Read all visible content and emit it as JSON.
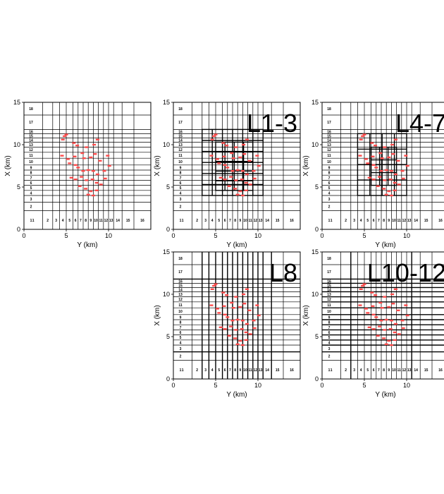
{
  "figure": {
    "x_axis_label": "Y (km)",
    "y_axis_label": "X (km)",
    "x_ticks": [
      "0",
      "5",
      "10"
    ],
    "y_ticks": [
      "0",
      "5",
      "10",
      "15"
    ],
    "row_labels": [
      "1",
      "2",
      "3",
      "4",
      "5",
      "6",
      "7",
      "8",
      "9",
      "10",
      "11",
      "12",
      "13",
      "14",
      "15",
      "16",
      "17",
      "18"
    ],
    "col_labels": [
      "1",
      "2",
      "3",
      "4",
      "5",
      "6",
      "7",
      "8",
      "9",
      "10",
      "11",
      "12",
      "13",
      "14",
      "15",
      "16"
    ],
    "event_color": "#ff4b4b",
    "grid_color": "#000000"
  },
  "panels": [
    {
      "id": "base",
      "label": "",
      "refinement": "none"
    },
    {
      "id": "L1-3",
      "label": "L1-3",
      "refinement": "L1-3"
    },
    {
      "id": "L4-7",
      "label": "L4-7",
      "refinement": "L4-7"
    },
    {
      "id": "L8",
      "label": "L8",
      "refinement": "L8"
    },
    {
      "id": "L10-12",
      "label": "L10-12",
      "refinement": "L10-12"
    }
  ],
  "events": [
    [
      4.8,
      11.0
    ],
    [
      5.0,
      11.2
    ],
    [
      4.6,
      10.6
    ],
    [
      5.9,
      10.2
    ],
    [
      6.3,
      9.9
    ],
    [
      7.4,
      9.7
    ],
    [
      8.3,
      10.0
    ],
    [
      8.7,
      10.6
    ],
    [
      4.5,
      8.7
    ],
    [
      5.2,
      8.3
    ],
    [
      6.0,
      8.6
    ],
    [
      7.1,
      8.4
    ],
    [
      7.9,
      8.5
    ],
    [
      9.0,
      8.1
    ],
    [
      9.9,
      8.7
    ],
    [
      6.4,
      7.3
    ],
    [
      7.0,
      6.9
    ],
    [
      7.6,
      7.0
    ],
    [
      8.2,
      6.9
    ],
    [
      8.7,
      6.5
    ],
    [
      9.5,
      6.9
    ],
    [
      5.6,
      6.1
    ],
    [
      6.1,
      5.9
    ],
    [
      6.8,
      6.2
    ],
    [
      7.4,
      5.8
    ],
    [
      8.1,
      5.9
    ],
    [
      8.6,
      5.5
    ],
    [
      6.6,
      5.1
    ],
    [
      7.3,
      4.8
    ],
    [
      7.9,
      4.5
    ],
    [
      8.6,
      4.6
    ],
    [
      7.6,
      4.1
    ],
    [
      8.2,
      4.0
    ],
    [
      9.1,
      5.3
    ],
    [
      9.6,
      6.0
    ],
    [
      10.1,
      7.5
    ],
    [
      5.4,
      7.8
    ],
    [
      6.1,
      7.6
    ],
    [
      6.9,
      9.0
    ],
    [
      8.4,
      8.9
    ]
  ]
}
